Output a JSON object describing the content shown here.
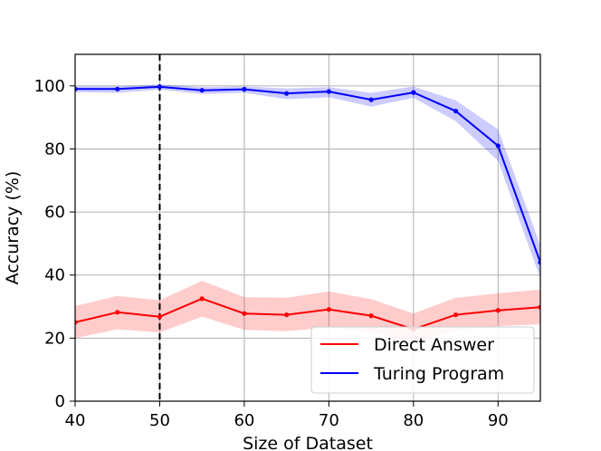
{
  "chart_data": {
    "type": "line",
    "title": "",
    "xlabel": "Size of Dataset",
    "ylabel": "Accuracy (%)",
    "xlim": [
      40,
      95
    ],
    "ylim": [
      0,
      110
    ],
    "xticks": [
      40,
      50,
      60,
      70,
      80,
      90
    ],
    "yticks": [
      0,
      20,
      40,
      60,
      80,
      100
    ],
    "grid": true,
    "legend_position": "bottom-right",
    "vline": {
      "x": 50,
      "style": "dashed",
      "color": "#000000"
    },
    "x": [
      40,
      45,
      50,
      55,
      60,
      65,
      70,
      75,
      80,
      85,
      90,
      95
    ],
    "series": [
      {
        "name": "Direct Answer",
        "color": "#ff0000",
        "values": [
          25.0,
          28.2,
          26.8,
          32.5,
          27.8,
          27.4,
          29.1,
          27.1,
          22.8,
          27.4,
          28.8,
          29.8
        ],
        "lower": [
          20.0,
          22.8,
          21.8,
          26.8,
          22.6,
          22.2,
          23.4,
          22.0,
          18.4,
          22.4,
          23.8,
          24.4
        ],
        "upper": [
          30.2,
          33.4,
          32.0,
          38.2,
          33.0,
          32.8,
          34.8,
          32.4,
          27.8,
          32.8,
          34.2,
          35.4
        ]
      },
      {
        "name": "Turing Program",
        "color": "#0000ff",
        "values": [
          99.0,
          99.0,
          99.7,
          98.6,
          98.9,
          97.6,
          98.2,
          95.6,
          97.9,
          92.0,
          81.0,
          44.0
        ],
        "lower": [
          98.0,
          97.8,
          98.8,
          97.4,
          97.8,
          95.8,
          96.4,
          93.4,
          96.2,
          88.8,
          76.2,
          39.0
        ],
        "upper": [
          99.8,
          99.8,
          100.5,
          99.6,
          99.8,
          99.2,
          99.6,
          97.8,
          99.8,
          95.4,
          86.2,
          49.4
        ]
      }
    ]
  }
}
